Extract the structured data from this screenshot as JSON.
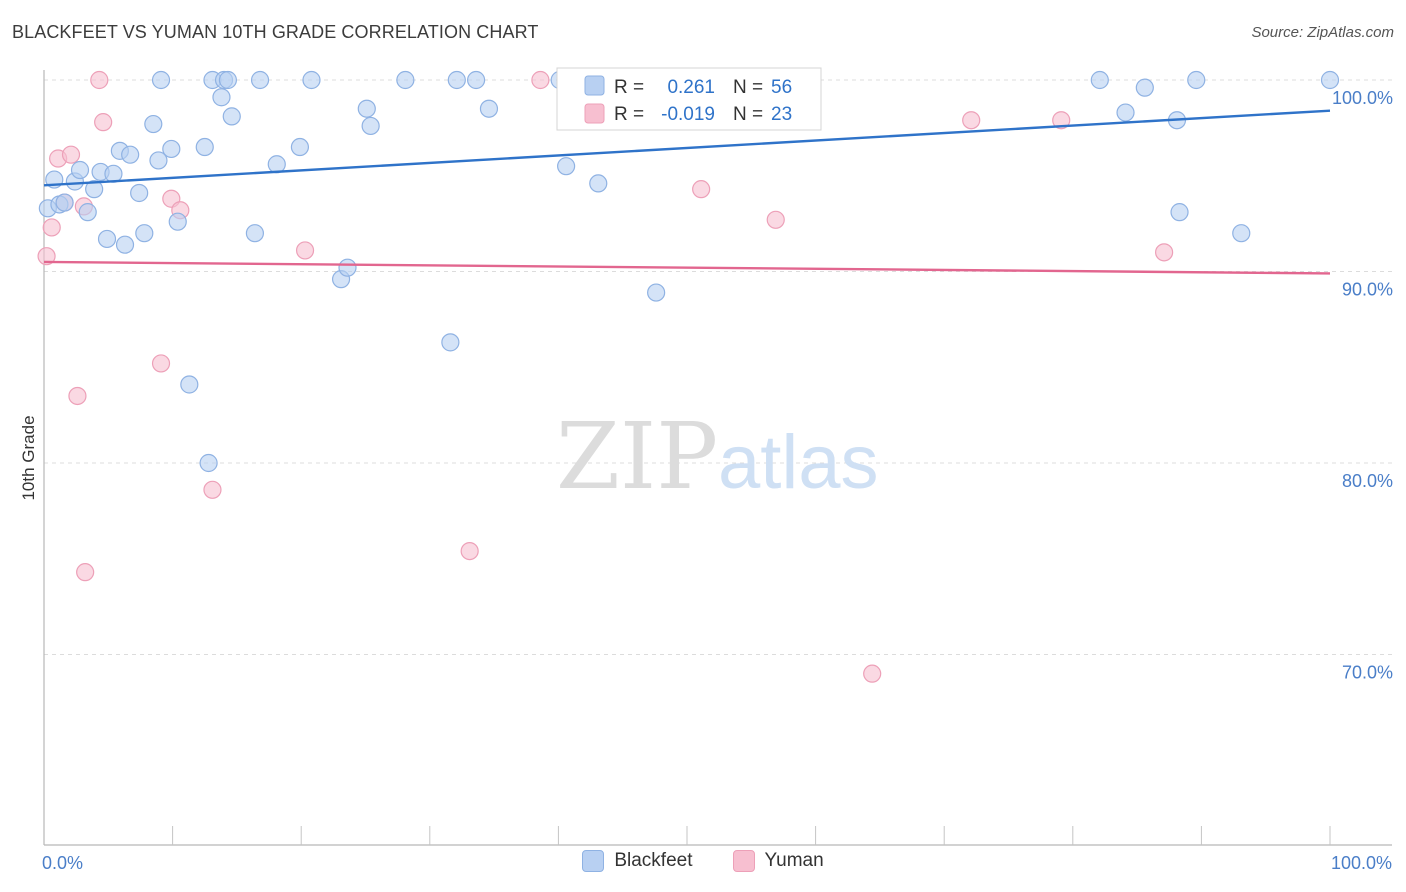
{
  "header": {
    "title": "BLACKFEET VS YUMAN 10TH GRADE CORRELATION CHART",
    "source": "Source: ZipAtlas.com"
  },
  "watermark": {
    "zip": "ZIP",
    "atlas": "atlas"
  },
  "stats": {
    "blackfeet": {
      "r_label": "R =",
      "r_value": "0.261",
      "n_label": "N =",
      "n_value": "56"
    },
    "yuman": {
      "r_label": "R =",
      "r_value": "-0.019",
      "n_label": "N =",
      "n_value": "23"
    }
  },
  "legend": {
    "blackfeet": "Blackfeet",
    "yuman": "Yuman"
  },
  "colors": {
    "blackfeet_fill": "#b8d0f2",
    "blackfeet_line": "#2f73c9",
    "yuman_fill": "#f7bfd0",
    "yuman_line": "#e2668f",
    "axis_label": "#4a7ec8"
  },
  "chart_data": {
    "type": "scatter",
    "title": "BLACKFEET VS YUMAN 10TH GRADE CORRELATION CHART",
    "xlabel": "",
    "ylabel": "10th Grade",
    "xlim": [
      0,
      100
    ],
    "ylim": [
      60,
      101.5
    ],
    "x_ticks": [
      "0.0%",
      "100.0%"
    ],
    "y_ticks": [
      {
        "value": 100,
        "label": "100.0%"
      },
      {
        "value": 90,
        "label": "90.0%"
      },
      {
        "value": 80,
        "label": "80.0%"
      },
      {
        "value": 70,
        "label": "70.0%"
      }
    ],
    "grid": true,
    "legend_position": "bottom-center",
    "series": [
      {
        "name": "Blackfeet",
        "trend": [
          [
            0,
            94.5
          ],
          [
            100,
            98.4
          ]
        ],
        "points": [
          [
            0.3,
            93.3
          ],
          [
            0.8,
            94.8
          ],
          [
            1.2,
            93.5
          ],
          [
            1.6,
            93.6
          ],
          [
            2.4,
            94.7
          ],
          [
            2.8,
            95.3
          ],
          [
            3.4,
            93.1
          ],
          [
            3.9,
            94.3
          ],
          [
            4.4,
            95.2
          ],
          [
            4.9,
            91.7
          ],
          [
            5.4,
            95.1
          ],
          [
            5.9,
            96.3
          ],
          [
            6.3,
            91.4
          ],
          [
            6.7,
            96.1
          ],
          [
            7.4,
            94.1
          ],
          [
            7.8,
            92.0
          ],
          [
            8.5,
            97.7
          ],
          [
            8.9,
            95.8
          ],
          [
            9.1,
            100.0
          ],
          [
            9.9,
            96.4
          ],
          [
            10.4,
            92.6
          ],
          [
            11.3,
            84.1
          ],
          [
            12.5,
            96.5
          ],
          [
            12.8,
            80.0
          ],
          [
            13.1,
            100.0
          ],
          [
            13.8,
            99.1
          ],
          [
            14.0,
            100.0
          ],
          [
            14.3,
            100.0
          ],
          [
            14.6,
            98.1
          ],
          [
            16.4,
            92.0
          ],
          [
            16.8,
            100.0
          ],
          [
            18.1,
            95.6
          ],
          [
            19.9,
            96.5
          ],
          [
            20.8,
            100.0
          ],
          [
            23.1,
            89.6
          ],
          [
            23.6,
            90.2
          ],
          [
            25.1,
            98.5
          ],
          [
            25.4,
            97.6
          ],
          [
            28.1,
            100.0
          ],
          [
            31.6,
            86.3
          ],
          [
            32.1,
            100.0
          ],
          [
            33.6,
            100.0
          ],
          [
            34.6,
            98.5
          ],
          [
            40.1,
            100.0
          ],
          [
            40.6,
            95.5
          ],
          [
            43.1,
            94.6
          ],
          [
            47.3,
            100.0
          ],
          [
            47.6,
            88.9
          ],
          [
            82.1,
            100.0
          ],
          [
            84.1,
            98.3
          ],
          [
            85.6,
            99.6
          ],
          [
            88.1,
            97.9
          ],
          [
            88.3,
            93.1
          ],
          [
            89.6,
            100.0
          ],
          [
            93.1,
            92.0
          ],
          [
            100.0,
            100.0
          ]
        ]
      },
      {
        "name": "Yuman",
        "trend": [
          [
            0,
            90.5
          ],
          [
            100,
            89.9
          ]
        ],
        "points": [
          [
            0.2,
            90.8
          ],
          [
            0.6,
            92.3
          ],
          [
            1.1,
            95.9
          ],
          [
            1.6,
            93.6
          ],
          [
            2.1,
            96.1
          ],
          [
            2.6,
            83.5
          ],
          [
            3.1,
            93.4
          ],
          [
            3.2,
            74.3
          ],
          [
            4.3,
            100.0
          ],
          [
            4.6,
            97.8
          ],
          [
            9.1,
            85.2
          ],
          [
            9.9,
            93.8
          ],
          [
            10.6,
            93.2
          ],
          [
            13.1,
            78.6
          ],
          [
            20.3,
            91.1
          ],
          [
            33.1,
            75.4
          ],
          [
            38.6,
            100.0
          ],
          [
            51.1,
            94.3
          ],
          [
            56.9,
            92.7
          ],
          [
            64.4,
            69.0
          ],
          [
            72.1,
            97.9
          ],
          [
            79.1,
            97.9
          ],
          [
            87.1,
            91.0
          ]
        ]
      }
    ]
  }
}
